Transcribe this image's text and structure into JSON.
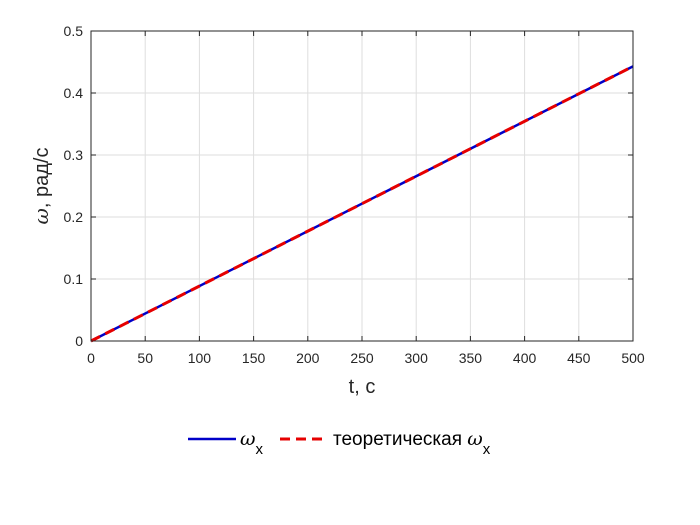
{
  "chart_data": {
    "type": "line",
    "xlabel": "t, с",
    "ylabel_symbol": "ω",
    "ylabel_units": ", рад/с",
    "xlim": [
      0,
      500
    ],
    "ylim": [
      0,
      0.5
    ],
    "xticks": [
      0,
      50,
      100,
      150,
      200,
      250,
      300,
      350,
      400,
      450,
      500
    ],
    "yticks": [
      0,
      0.1,
      0.2,
      0.3,
      0.4,
      0.5
    ],
    "grid": true,
    "legend_placement": "bottom-center",
    "series": [
      {
        "name_symbol": "ω",
        "name_subscript": "x",
        "color": "#0000c8",
        "style": "solid",
        "x": [
          0,
          500
        ],
        "y": [
          0,
          0.443
        ]
      },
      {
        "name_prefix": "теоретическая ",
        "name_symbol": "ω",
        "name_subscript": "x",
        "color": "#e60000",
        "style": "dashed",
        "x": [
          0,
          500
        ],
        "y": [
          0,
          0.443
        ]
      }
    ]
  }
}
